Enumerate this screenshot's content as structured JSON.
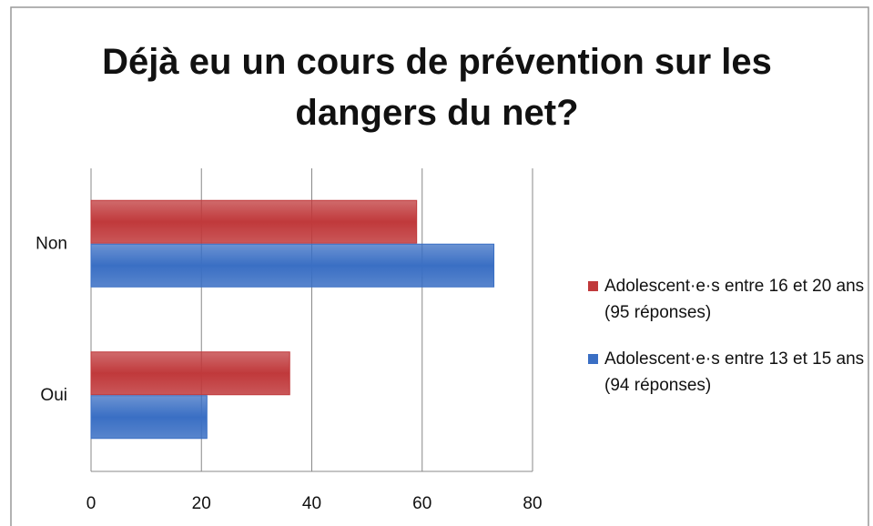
{
  "chart_data": {
    "type": "bar",
    "orientation": "horizontal",
    "title": "Déjà eu un cours de prévention sur les dangers du net?",
    "categories": [
      "Non",
      "Oui"
    ],
    "series": [
      {
        "name": "Adolescent·e·s entre 16 et 20 ans (95 réponses)",
        "color": "#c0393b",
        "values": [
          59,
          36
        ]
      },
      {
        "name": "Adolescent·e·s entre 13 et 15 ans (94 réponses)",
        "color": "#3a6fc4",
        "values": [
          73,
          21
        ]
      }
    ],
    "xlim": [
      0,
      80
    ],
    "xticks": [
      0,
      20,
      40,
      60,
      80
    ],
    "grid": true,
    "legend": "right"
  }
}
